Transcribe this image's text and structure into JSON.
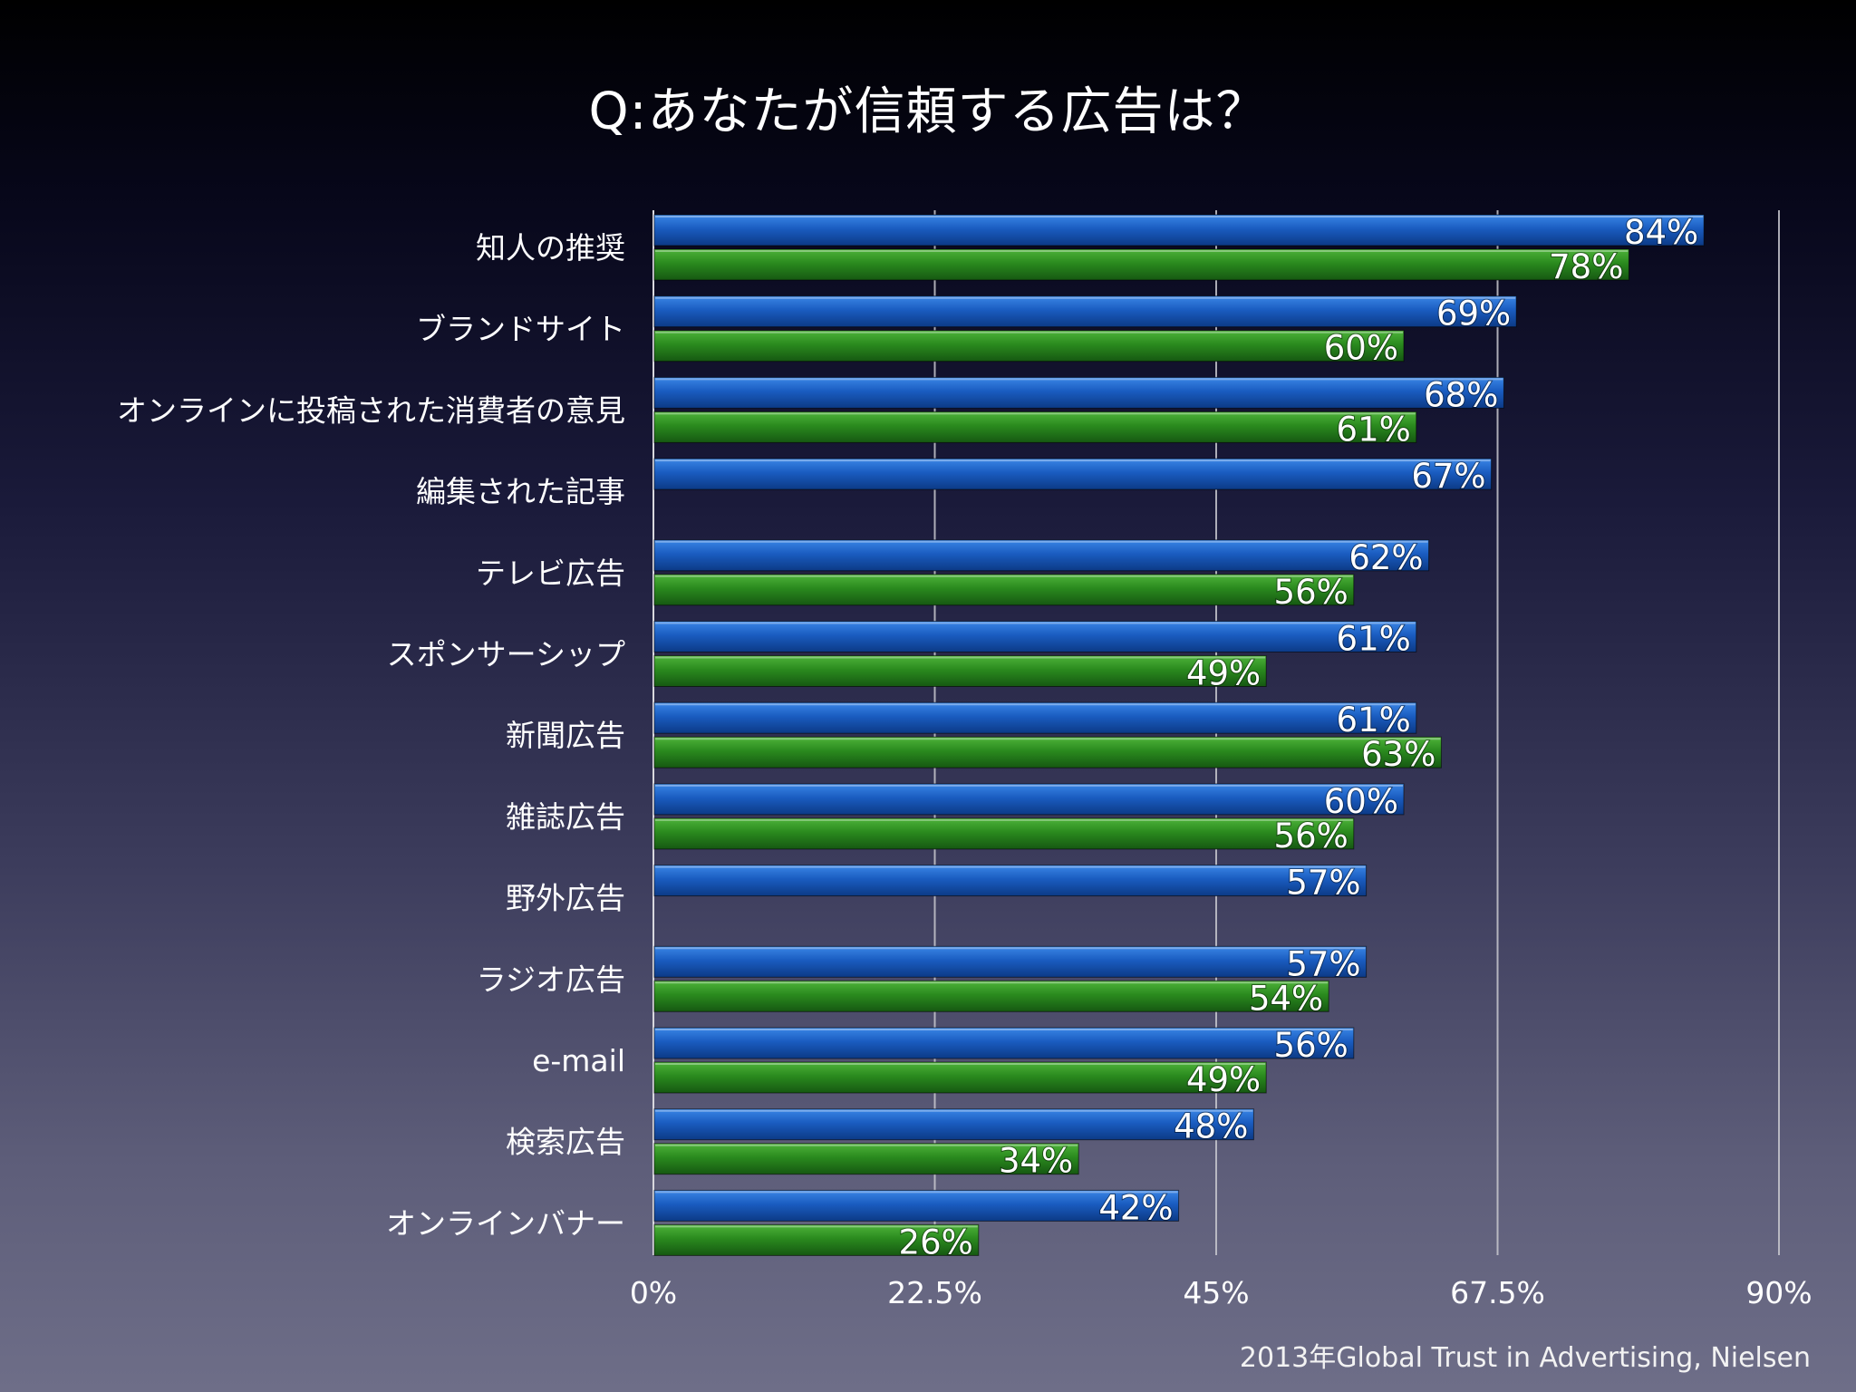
{
  "slide": {
    "title": "Q:あなたが信頼する広告は？",
    "source": "2013年Global Trust in Advertising, Nielsen"
  },
  "colors": {
    "series_a": "#1a5cc0",
    "series_b": "#2a8a1e",
    "gridline": "#c8c8cf"
  },
  "chart_data": {
    "type": "bar",
    "orientation": "horizontal",
    "title": "Q:あなたが信頼する広告は？",
    "categories": [
      "知人の推奨",
      "ブランドサイト",
      "オンラインに投稿された消費者の意見",
      "編集された記事",
      "テレビ広告",
      "スポンサーシップ",
      "新聞広告",
      "雑誌広告",
      "野外広告",
      "ラジオ広告",
      "e-mail",
      "検索広告",
      "オンラインバナー"
    ],
    "series": [
      {
        "color": "#1a5cc0",
        "values": [
          84,
          69,
          68,
          67,
          62,
          61,
          61,
          60,
          57,
          57,
          56,
          48,
          42
        ],
        "labels": [
          "84%",
          "69%",
          "68%",
          "67%",
          "62%",
          "61%",
          "61%",
          "60%",
          "57%",
          "57%",
          "56%",
          "48%",
          "42%"
        ]
      },
      {
        "color": "#2a8a1e",
        "values": [
          78,
          60,
          61,
          null,
          56,
          49,
          63,
          56,
          null,
          54,
          49,
          34,
          26
        ],
        "labels": [
          "78%",
          "60%",
          "61%",
          null,
          "56%",
          "49%",
          "63%",
          "56%",
          null,
          "54%",
          "49%",
          "34%",
          "26%"
        ]
      }
    ],
    "xlim": [
      0,
      90
    ],
    "xticks": [
      0,
      22.5,
      45,
      67.5,
      90
    ],
    "xtick_labels": [
      "0%",
      "22.5%",
      "45%",
      "67.5%",
      "90%"
    ],
    "grid": true,
    "legend": "none"
  }
}
